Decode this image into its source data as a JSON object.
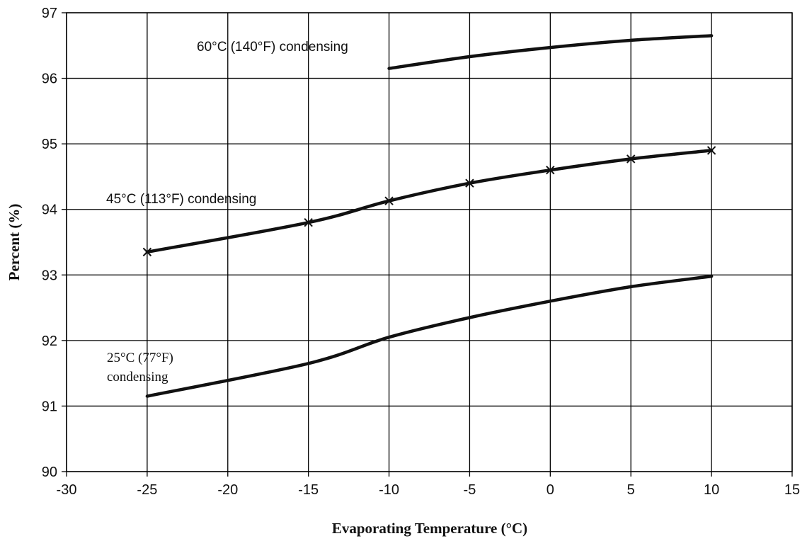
{
  "chart_data": {
    "type": "line",
    "title": "",
    "xlabel": "Evaporating Temperature (°C)",
    "ylabel": "Percent (%)",
    "xlim": [
      -30,
      15
    ],
    "ylim": [
      90,
      97
    ],
    "xticks": [
      "-30",
      "-25",
      "-20",
      "-15",
      "-10",
      "-5",
      "0",
      "5",
      "10",
      "15"
    ],
    "yticks": [
      "90",
      "91",
      "92",
      "93",
      "94",
      "95",
      "96",
      "97"
    ],
    "grid": true,
    "series": [
      {
        "label": "60°C (140°F)  condensing",
        "marker": "none",
        "x": [
          -10,
          -5,
          0,
          5,
          10
        ],
        "y": [
          96.15,
          96.33,
          96.47,
          96.58,
          96.65
        ]
      },
      {
        "label": "45°C (113°F) condensing",
        "marker": "x",
        "x": [
          -25,
          -15,
          -10,
          -5,
          0,
          5,
          10
        ],
        "y": [
          93.35,
          93.8,
          94.13,
          94.4,
          94.6,
          94.77,
          94.9
        ]
      },
      {
        "label": "25°C (77°F) condensing",
        "label_lines": [
          "25°C (77°F)",
          "condensing"
        ],
        "marker": "none",
        "x": [
          -25,
          -15,
          -10,
          -5,
          0,
          5,
          10
        ],
        "y": [
          91.15,
          91.65,
          92.05,
          92.35,
          92.6,
          92.82,
          92.98
        ]
      }
    ]
  }
}
